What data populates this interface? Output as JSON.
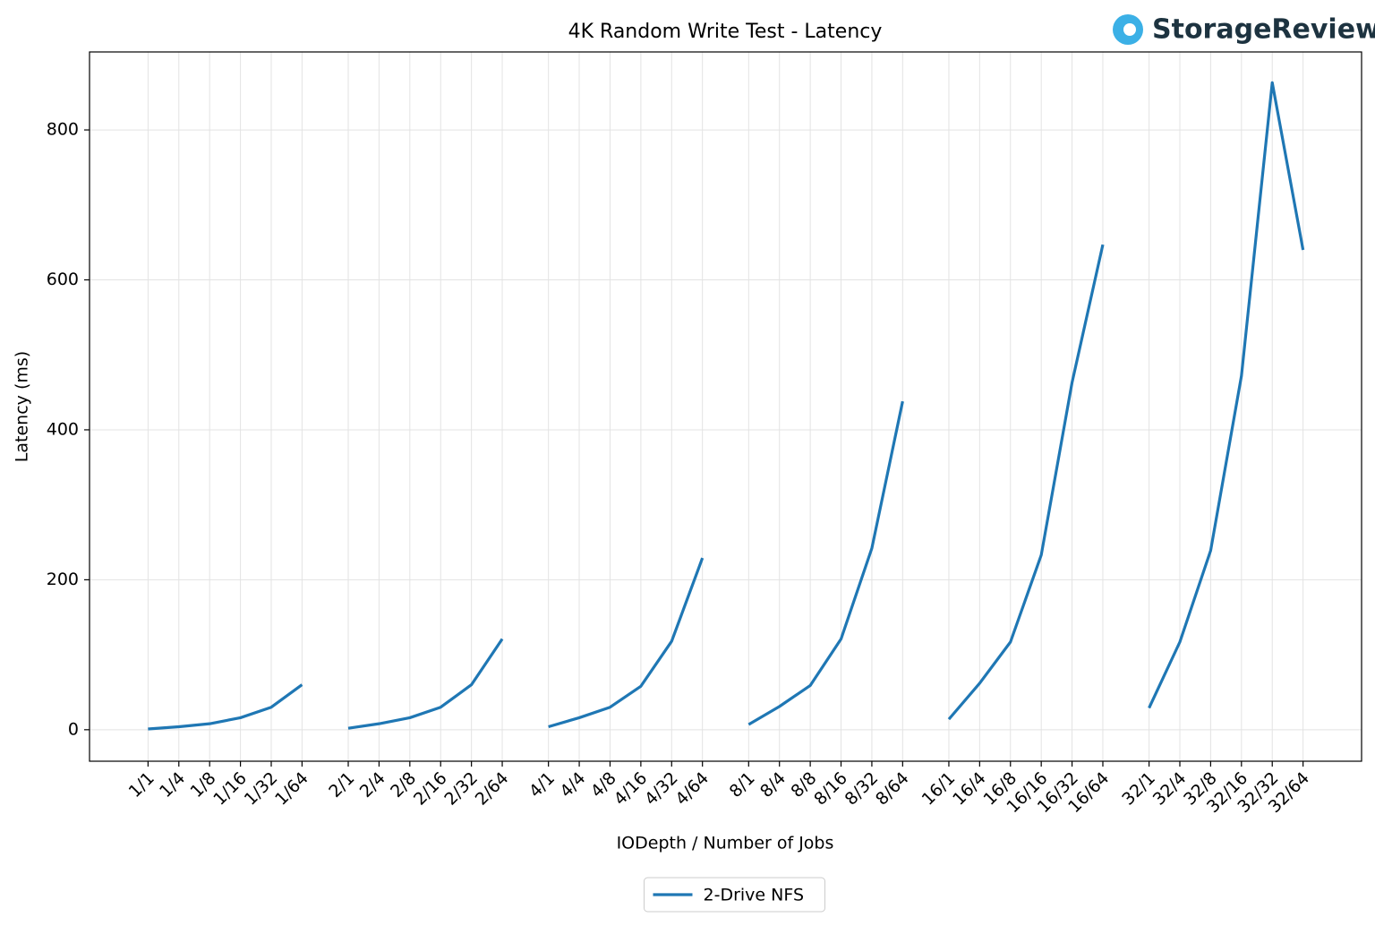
{
  "brand": "StorageReview",
  "chart_data": {
    "type": "line",
    "title": "4K Random Write Test - Latency",
    "x_label": "IODepth / Number of Jobs",
    "y_label": "Latency (ms)",
    "categories": [
      "1/1",
      "1/4",
      "1/8",
      "1/16",
      "1/32",
      "1/64",
      null,
      "2/1",
      "2/4",
      "2/8",
      "2/16",
      "2/32",
      "2/64",
      null,
      "4/1",
      "4/4",
      "4/8",
      "4/16",
      "4/32",
      "4/64",
      null,
      "8/1",
      "8/4",
      "8/8",
      "8/16",
      "8/32",
      "8/64",
      null,
      "16/1",
      "16/4",
      "16/8",
      "16/16",
      "16/32",
      "16/64",
      null,
      "32/1",
      "32/4",
      "32/8",
      "32/16",
      "32/32",
      "32/64"
    ],
    "series": [
      {
        "name": "2-Drive NFS",
        "color": "#1f77b4",
        "values": [
          1,
          4,
          8,
          16,
          30,
          60,
          null,
          2,
          8,
          16,
          30,
          60,
          121,
          null,
          4,
          16,
          30,
          58,
          118,
          229,
          null,
          7,
          31,
          59,
          121,
          242,
          438,
          null,
          14,
          62,
          117,
          233,
          463,
          647,
          null,
          29,
          117,
          239,
          472,
          863,
          640
        ]
      }
    ],
    "ylim": [
      -42,
      904
    ],
    "yticks": [
      0,
      200,
      400,
      600,
      800
    ],
    "grid": true,
    "legend": "lower center"
  }
}
